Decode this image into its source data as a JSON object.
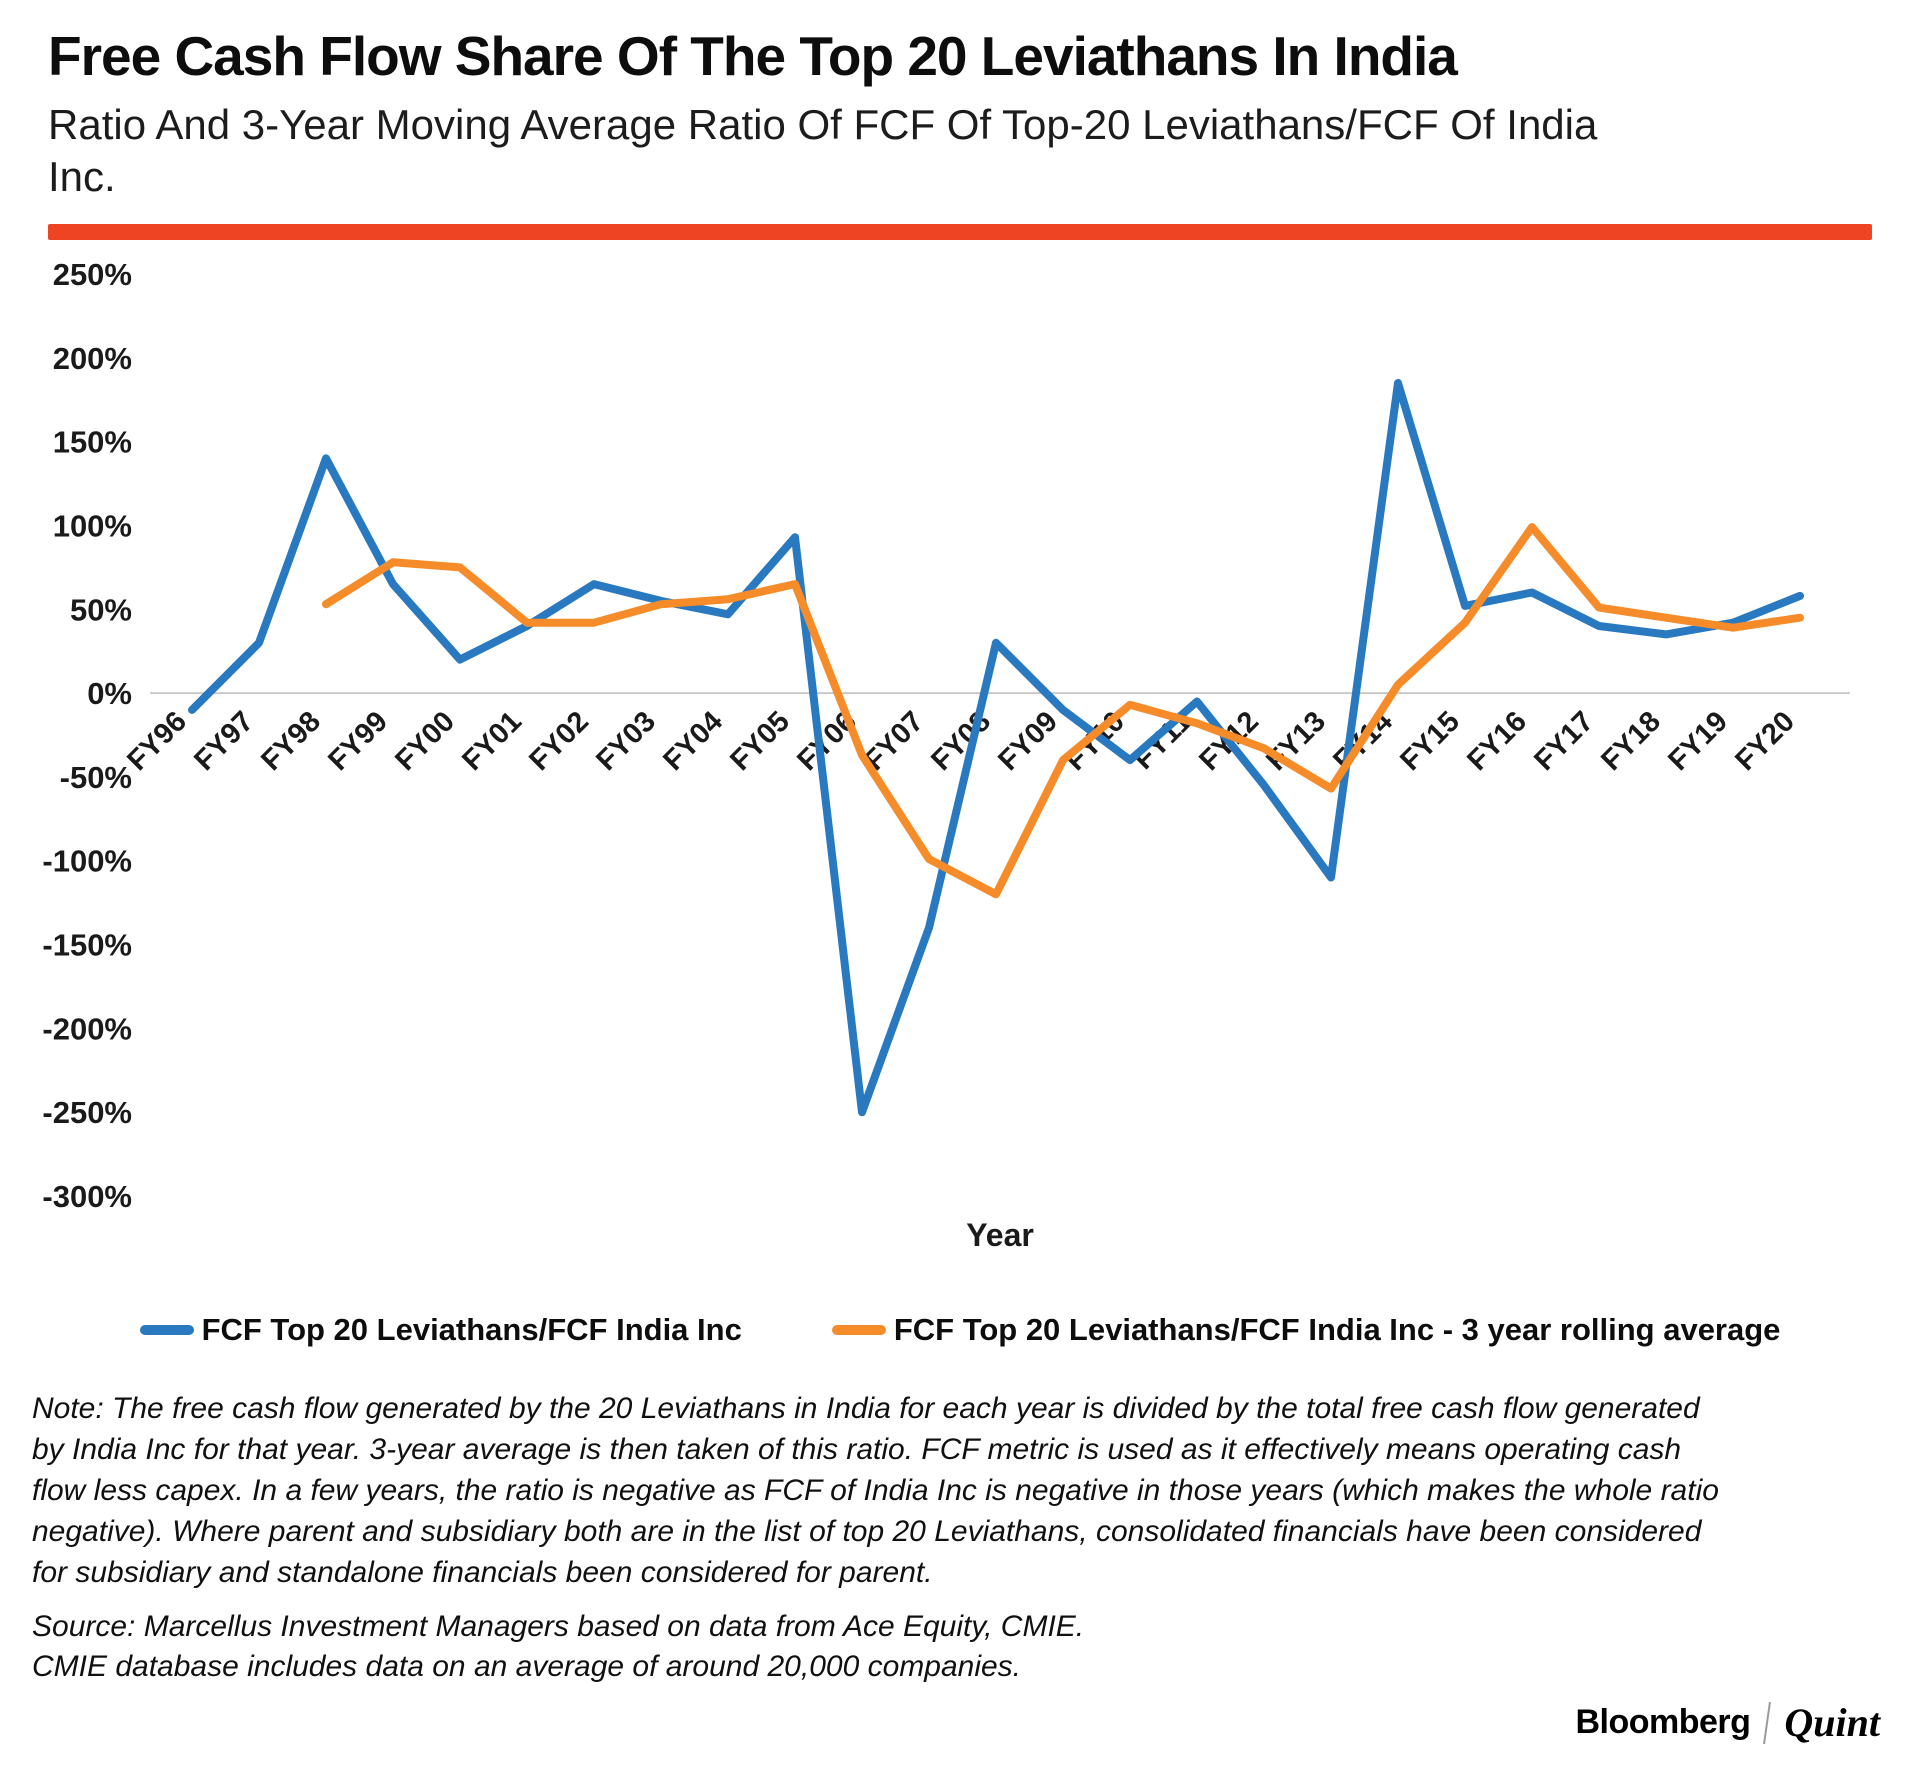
{
  "header": {
    "title": "Free Cash Flow Share Of The Top 20 Leviathans In India",
    "subtitle": "Ratio And 3-Year Moving Average Ratio Of FCF Of Top-20 Leviathans/FCF Of India Inc.",
    "accent_color": "#ef4423"
  },
  "chart_data": {
    "type": "line",
    "categories": [
      "FY96",
      "FY97",
      "FY98",
      "FY99",
      "FY00",
      "FY01",
      "FY02",
      "FY03",
      "FY04",
      "FY05",
      "FY06",
      "FY07",
      "FY08",
      "FY09",
      "FY10",
      "FY11",
      "FY12",
      "FY13",
      "FY14",
      "FY15",
      "FY16",
      "FY17",
      "FY18",
      "FY19",
      "FY20"
    ],
    "series": [
      {
        "name": "FCF Top 20 Leviathans/FCF India Inc",
        "color": "#2979c0",
        "values": [
          -10,
          30,
          140,
          65,
          20,
          40,
          65,
          55,
          47,
          93,
          -250,
          -140,
          30,
          -10,
          -40,
          -5,
          -55,
          -110,
          185,
          52,
          60,
          40,
          35,
          42,
          58
        ]
      },
      {
        "name": "FCF Top 20 Leviathans/FCF India Inc - 3 year rolling average",
        "color": "#f68b29",
        "values": [
          null,
          null,
          53,
          78,
          75,
          42,
          42,
          53,
          56,
          65,
          -37,
          -99,
          -120,
          -40,
          -7,
          -18,
          -33,
          -57,
          5,
          42,
          99,
          51,
          45,
          39,
          45
        ]
      }
    ],
    "title": "Free Cash Flow Share Of The Top 20 Leviathans In India",
    "xlabel": "Year",
    "ylabel": "",
    "ylim": [
      -300,
      250
    ],
    "ytick_step": 50,
    "ytick_format": "percent",
    "grid": "zero-line-only",
    "zero_line_color": "#c9c9c9",
    "legend_position": "bottom"
  },
  "notes": {
    "note": "Note: The free cash flow generated by the 20 Leviathans in India for each year is divided by the total free cash flow generated by India Inc for that year. 3-year average is then taken of this ratio. FCF metric is used as it effectively means operating cash flow less capex. In a few years, the ratio is negative as FCF of India Inc is negative in those years (which makes the whole ratio negative). Where parent and subsidiary both are in the list of top 20 Leviathans, consolidated financials have been considered for subsidiary and standalone financials been considered for parent."
  },
  "source": {
    "line1": "Source: Marcellus Investment Managers based on data from Ace Equity, CMIE.",
    "line2": "CMIE database includes data on an average of around 20,000 companies."
  },
  "footer": {
    "bloomberg": "Bloomberg",
    "quint": "Quint"
  }
}
